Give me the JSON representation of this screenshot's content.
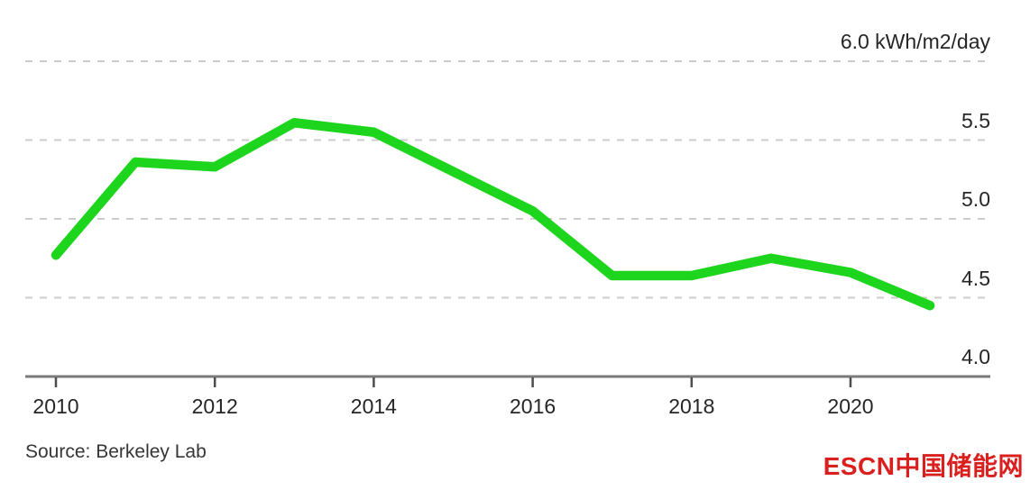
{
  "chart_data": {
    "type": "line",
    "title": "",
    "x": [
      2010,
      2011,
      2012,
      2013,
      2014,
      2015,
      2016,
      2017,
      2018,
      2019,
      2020,
      2021
    ],
    "values": [
      4.77,
      5.36,
      5.33,
      5.61,
      5.55,
      5.3,
      5.05,
      4.64,
      4.64,
      4.75,
      4.66,
      4.45
    ],
    "ylabel": "kWh/m2/day",
    "ylim": [
      4.0,
      6.2
    ],
    "yticks": [
      4.0,
      4.5,
      5.0,
      5.5,
      6.0
    ],
    "ytick_labels": [
      "4.0",
      "4.5",
      "5.0",
      "5.5",
      "6.0 kWh/m2/day"
    ],
    "xticks": [
      2010,
      2012,
      2014,
      2016,
      2018,
      2020
    ],
    "xtick_labels": [
      "2010",
      "2012",
      "2014",
      "2016",
      "2018",
      "2020"
    ],
    "grid": "horizontal dashed",
    "legend": "none"
  },
  "footer": {
    "source": "Source: Berkeley Lab",
    "logo": "ESCN中国储能网"
  },
  "colors": {
    "background": "#ffffff",
    "line": "#1ed51e",
    "grid": "#cccccc",
    "axis": "#7a7a7a",
    "tick": "#4c4c4c",
    "text": "#262626",
    "logo_red": "#da201e"
  }
}
